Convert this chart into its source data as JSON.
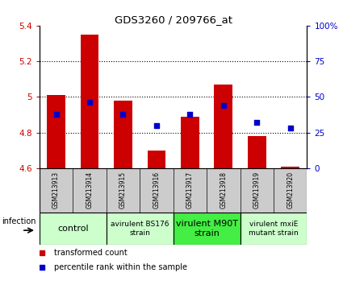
{
  "title": "GDS3260 / 209766_at",
  "samples": [
    "GSM213913",
    "GSM213914",
    "GSM213915",
    "GSM213916",
    "GSM213917",
    "GSM213918",
    "GSM213919",
    "GSM213920"
  ],
  "bar_values": [
    5.01,
    5.35,
    4.98,
    4.7,
    4.89,
    5.07,
    4.78,
    4.61
  ],
  "percentile_values": [
    38,
    46,
    38,
    30,
    38,
    44,
    32,
    28
  ],
  "ylim_left": [
    4.6,
    5.4
  ],
  "ylim_right": [
    0,
    100
  ],
  "yticks_left": [
    4.6,
    4.8,
    5.0,
    5.2,
    5.4
  ],
  "yticks_right": [
    0,
    25,
    50,
    75,
    100
  ],
  "ytick_labels_left": [
    "4.6",
    "4.8",
    "5",
    "5.2",
    "5.4"
  ],
  "ytick_labels_right": [
    "0",
    "25",
    "50",
    "75",
    "100%"
  ],
  "bar_color": "#cc0000",
  "scatter_color": "#0000cc",
  "bar_bottom": 4.6,
  "groups": [
    {
      "label": "control",
      "samples": [
        0,
        1
      ],
      "color": "#ccffcc",
      "fontsize": 8
    },
    {
      "label": "avirulent BS176\nstrain",
      "samples": [
        2,
        3
      ],
      "color": "#ccffcc",
      "fontsize": 6.5
    },
    {
      "label": "virulent M90T\nstrain",
      "samples": [
        4,
        5
      ],
      "color": "#44ee44",
      "fontsize": 8
    },
    {
      "label": "virulent mxiE\nmutant strain",
      "samples": [
        6,
        7
      ],
      "color": "#ccffcc",
      "fontsize": 6.5
    }
  ],
  "legend_red_label": "transformed count",
  "legend_blue_label": "percentile rank within the sample",
  "infection_label": "infection",
  "dotted_yticks": [
    4.8,
    5.0,
    5.2
  ],
  "bar_width": 0.55
}
